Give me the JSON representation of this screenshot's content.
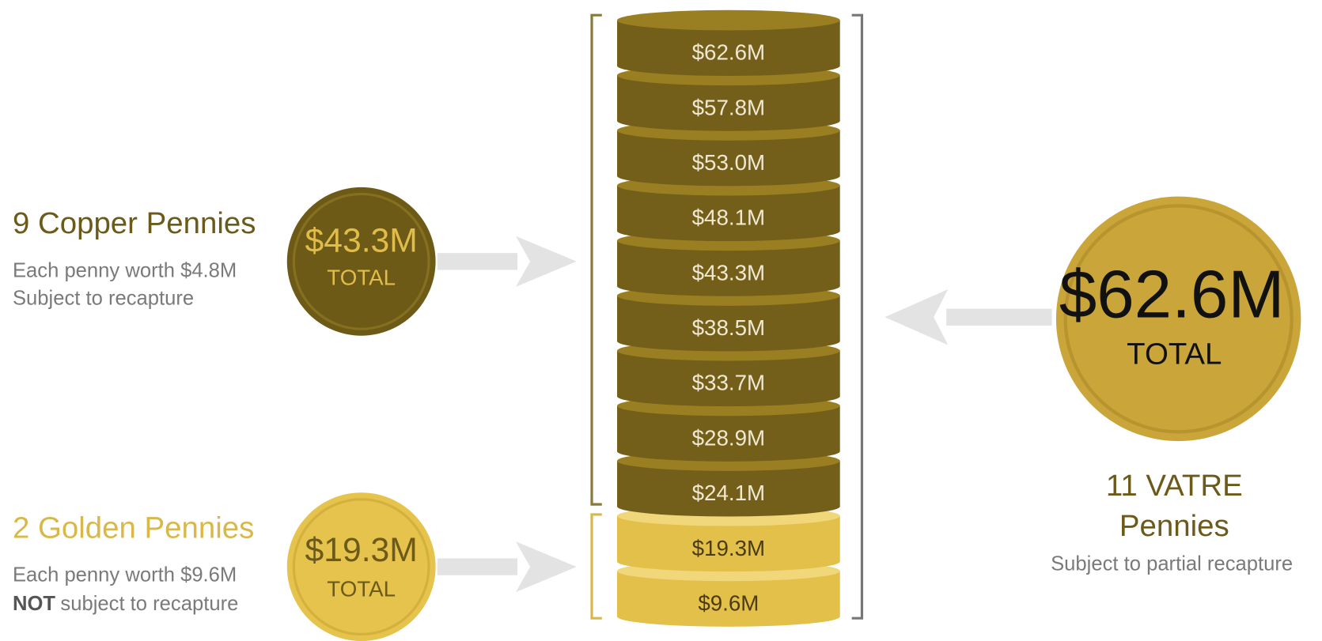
{
  "copper": {
    "title": "9 Copper Pennies",
    "lines": [
      "Each penny worth $4.8M",
      "Subject to recapture"
    ],
    "coin_value": "$43.3M",
    "coin_label": "TOTAL"
  },
  "golden": {
    "title": "2 Golden Pennies",
    "line": "Each penny worth $9.6M",
    "emphasis": "NOT",
    "rest": "subject to recapture",
    "coin_value": "$19.3M",
    "coin_label": "TOTAL"
  },
  "stack": {
    "copper": [
      "$62.6M",
      "$57.8M",
      "$53.0M",
      "$48.1M",
      "$43.3M",
      "$38.5M",
      "$33.7M",
      "$28.9M",
      "$24.1M"
    ],
    "golden": [
      "$19.3M",
      "$9.6M"
    ]
  },
  "vatre": {
    "coin_value": "$62.6M",
    "coin_label": "TOTAL",
    "title_lines": [
      "11 VATRE",
      "Pennies"
    ],
    "subtitle": "Subject to partial recapture"
  }
}
